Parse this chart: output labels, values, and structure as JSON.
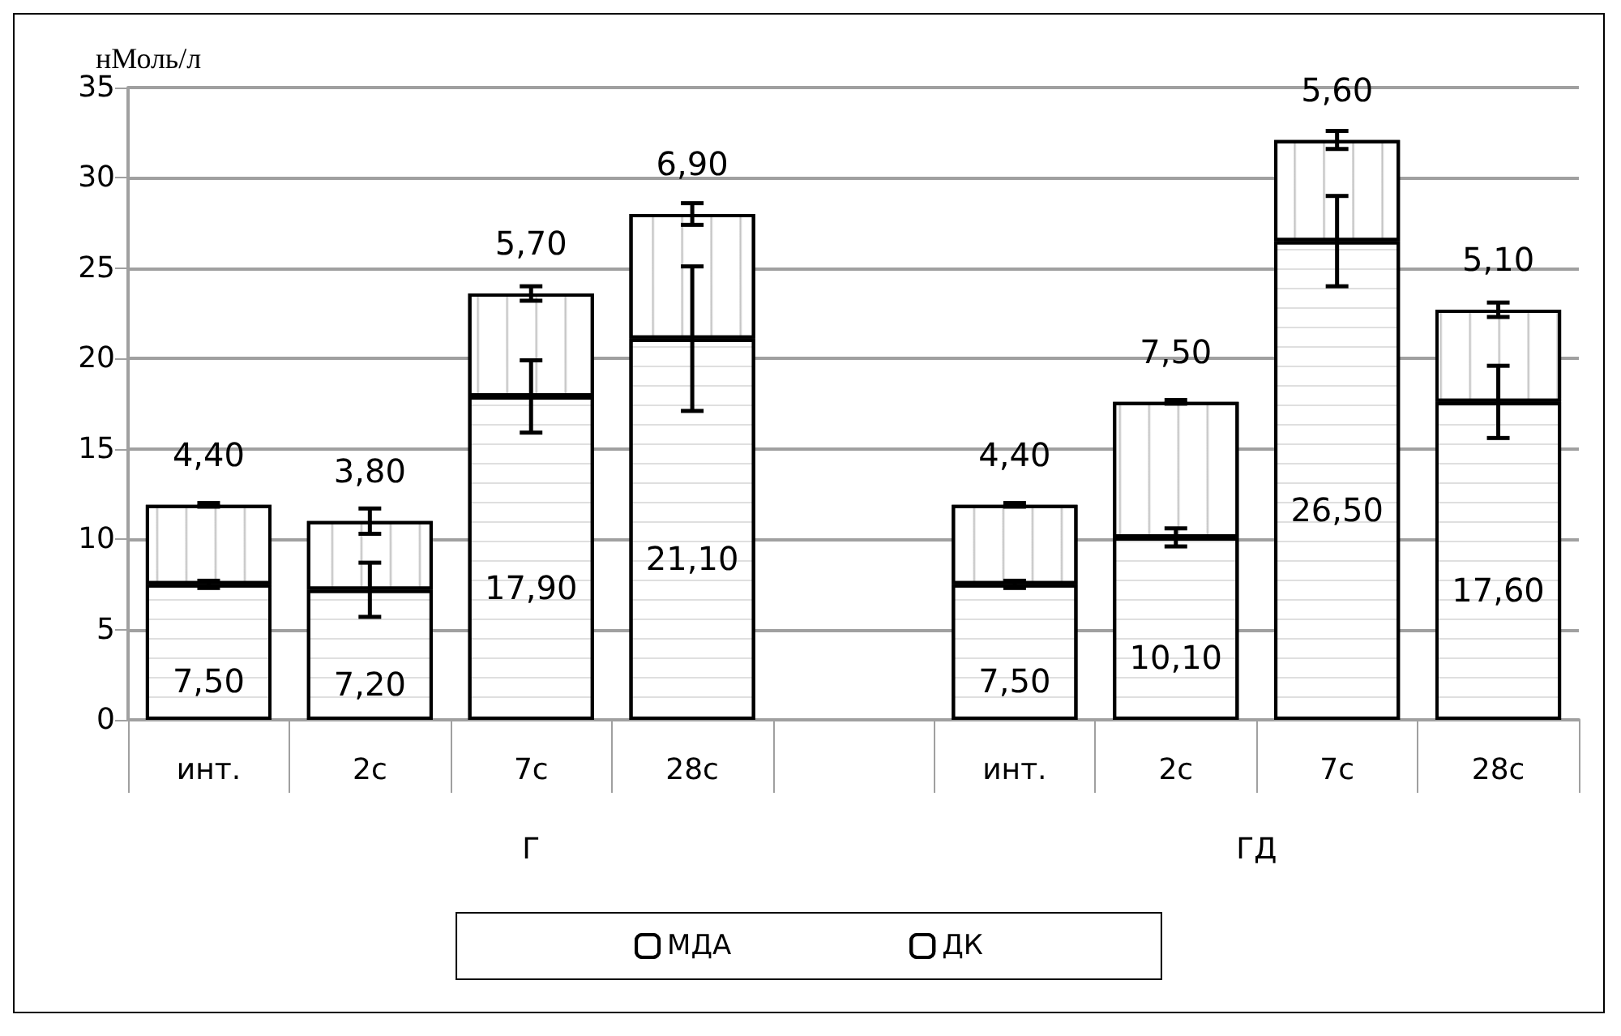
{
  "chart_data": {
    "type": "bar",
    "stacked": true,
    "ylabel": "нМоль/л",
    "categories": [
      "инт.",
      "2с",
      "7с",
      "28с",
      null,
      "инт.",
      "2с",
      "7с",
      "28с"
    ],
    "series": [
      {
        "name": "МДА",
        "color": "#ffffff",
        "values": [
          7.5,
          7.2,
          17.9,
          21.1,
          null,
          7.5,
          10.1,
          26.5,
          17.6
        ],
        "errors": [
          0.2,
          1.5,
          2,
          4,
          null,
          0.2,
          0.5,
          2.5,
          2
        ],
        "value_labels": [
          "7,50",
          "7,20",
          "17,90",
          "21,10",
          null,
          "7,50",
          "10,10",
          "26,50",
          "17,60"
        ]
      },
      {
        "name": "ДК",
        "color": "#ffffff",
        "values": [
          4.4,
          3.8,
          5.7,
          6.9,
          null,
          4.4,
          7.5,
          5.6,
          5.1
        ],
        "errors": [
          0.1,
          0.7,
          0.4,
          0.6,
          null,
          0.1,
          0.1,
          0.5,
          0.4
        ],
        "value_labels": [
          "4,40",
          "3,80",
          "5,70",
          "6,90",
          null,
          "4,40",
          "7,50",
          "5,60",
          "5,10"
        ]
      }
    ],
    "ylim": [
      0,
      35
    ],
    "yticks": [
      0,
      5,
      10,
      15,
      20,
      25,
      30,
      35
    ],
    "grid": "y",
    "legend": "bottom",
    "annotations": [
      "Г",
      "ГД"
    ]
  }
}
